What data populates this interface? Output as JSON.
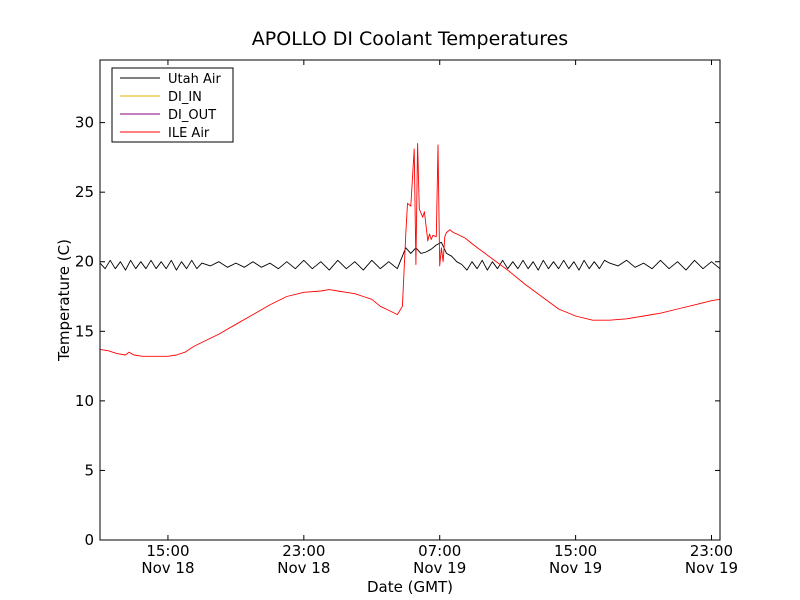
{
  "chart_data": {
    "type": "line",
    "title": "APOLLO DI Coolant Temperatures",
    "xlabel": "Date (GMT)",
    "ylabel": "Temperature (C)",
    "x_unit": "hours since Nov 18 00:00 GMT",
    "xlim": [
      11,
      47.5
    ],
    "ylim": [
      0,
      34.5
    ],
    "y_ticks": [
      0,
      5,
      10,
      15,
      20,
      25,
      30
    ],
    "x_ticks": [
      {
        "value": 15,
        "time": "15:00",
        "date": "Nov 18"
      },
      {
        "value": 23,
        "time": "23:00",
        "date": "Nov 18"
      },
      {
        "value": 31,
        "time": "07:00",
        "date": "Nov 19"
      },
      {
        "value": 39,
        "time": "15:00",
        "date": "Nov 19"
      },
      {
        "value": 47,
        "time": "23:00",
        "date": "Nov 19"
      }
    ],
    "grid": false,
    "legend_position": "top-left",
    "series": [
      {
        "name": "Utah Air",
        "color": "#000000",
        "x": [
          11,
          11.3,
          11.6,
          11.9,
          12.2,
          12.5,
          12.8,
          13.1,
          13.4,
          13.7,
          14.0,
          14.3,
          14.6,
          14.9,
          15.2,
          15.5,
          15.8,
          16.1,
          16.4,
          16.7,
          17,
          17.5,
          18,
          18.5,
          19,
          19.5,
          20,
          20.5,
          21,
          21.5,
          22,
          22.5,
          23,
          23.5,
          24,
          24.5,
          25,
          25.5,
          26,
          26.5,
          27,
          27.5,
          28,
          28.5,
          29,
          29.3,
          29.6,
          29.9,
          30.2,
          30.5,
          30.8,
          31.1,
          31.4,
          31.7,
          32.0,
          32.3,
          32.6,
          32.9,
          33.2,
          33.5,
          33.8,
          34.1,
          34.4,
          34.7,
          35.0,
          35.3,
          35.6,
          35.9,
          36.2,
          36.5,
          36.8,
          37.1,
          37.4,
          37.7,
          38.0,
          38.3,
          38.6,
          38.9,
          39.2,
          39.5,
          39.8,
          40.1,
          40.4,
          40.7,
          41,
          41.5,
          42,
          42.5,
          43,
          43.5,
          44,
          44.5,
          45,
          45.5,
          46,
          46.5,
          47,
          47.5
        ],
        "y": [
          19.9,
          19.5,
          20.1,
          19.5,
          20.0,
          19.4,
          20.1,
          19.5,
          20.0,
          19.5,
          20.1,
          19.5,
          20.0,
          19.5,
          20.1,
          19.4,
          20.0,
          19.5,
          20.1,
          19.5,
          19.9,
          19.7,
          20.0,
          19.6,
          19.9,
          19.6,
          20.0,
          19.6,
          19.9,
          19.5,
          20.0,
          19.5,
          20.1,
          19.5,
          20.0,
          19.4,
          20.1,
          19.5,
          20.0,
          19.4,
          20.1,
          19.5,
          20.0,
          19.5,
          21.0,
          20.6,
          21.0,
          20.6,
          20.7,
          20.9,
          21.2,
          21.4,
          20.6,
          20.4,
          20.0,
          19.8,
          19.4,
          20.0,
          19.5,
          20.1,
          19.4,
          20.0,
          19.5,
          20.1,
          19.5,
          20.0,
          19.5,
          20.1,
          19.5,
          20.0,
          19.4,
          20.1,
          19.5,
          20.0,
          19.5,
          20.1,
          19.5,
          20.0,
          19.4,
          20.1,
          19.5,
          20.0,
          19.5,
          20.1,
          19.9,
          19.7,
          20.1,
          19.6,
          19.9,
          19.5,
          20.1,
          19.5,
          20.0,
          19.4,
          20.1,
          19.5,
          20.0,
          19.5
        ]
      },
      {
        "name": "DI_IN",
        "color": "#e8b000",
        "x": [],
        "y": []
      },
      {
        "name": "DI_OUT",
        "color": "#800080",
        "x": [],
        "y": []
      },
      {
        "name": "ILE Air",
        "color": "#ff0000",
        "x": [
          11,
          11.5,
          12,
          12.5,
          12.7,
          13,
          13.5,
          14,
          14.5,
          15,
          15.5,
          16,
          16.5,
          17,
          18,
          19,
          20,
          21,
          22,
          23,
          24,
          24.5,
          25,
          25.5,
          26,
          26.5,
          27,
          27.5,
          28,
          28.5,
          28.8,
          29.0,
          29.1,
          29.3,
          29.5,
          29.6,
          29.7,
          29.8,
          30.0,
          30.1,
          30.3,
          30.4,
          30.5,
          30.6,
          30.8,
          30.9,
          31.0,
          31.1,
          31.2,
          31.3,
          31.4,
          31.5,
          31.6,
          31.7,
          31.8,
          32.0,
          32.5,
          33,
          34,
          35,
          36,
          37,
          38,
          39,
          40,
          41,
          42,
          43,
          44,
          45,
          46,
          47,
          47.5
        ],
        "y": [
          13.7,
          13.6,
          13.4,
          13.3,
          13.5,
          13.3,
          13.2,
          13.2,
          13.2,
          13.2,
          13.3,
          13.5,
          13.9,
          14.2,
          14.8,
          15.5,
          16.2,
          16.9,
          17.5,
          17.8,
          17.9,
          18.0,
          17.9,
          17.8,
          17.7,
          17.5,
          17.3,
          16.8,
          16.5,
          16.2,
          16.8,
          22.0,
          24.2,
          24.0,
          28.1,
          19.8,
          28.5,
          23.8,
          23.2,
          23.6,
          21.5,
          22.0,
          21.6,
          21.9,
          21.8,
          28.4,
          19.7,
          21.0,
          20.0,
          21.8,
          22.1,
          22.2,
          22.3,
          22.2,
          22.1,
          22.0,
          21.7,
          21.2,
          20.3,
          19.4,
          18.4,
          17.5,
          16.6,
          16.1,
          15.8,
          15.8,
          15.9,
          16.1,
          16.3,
          16.6,
          16.9,
          17.2,
          17.3
        ]
      }
    ]
  }
}
